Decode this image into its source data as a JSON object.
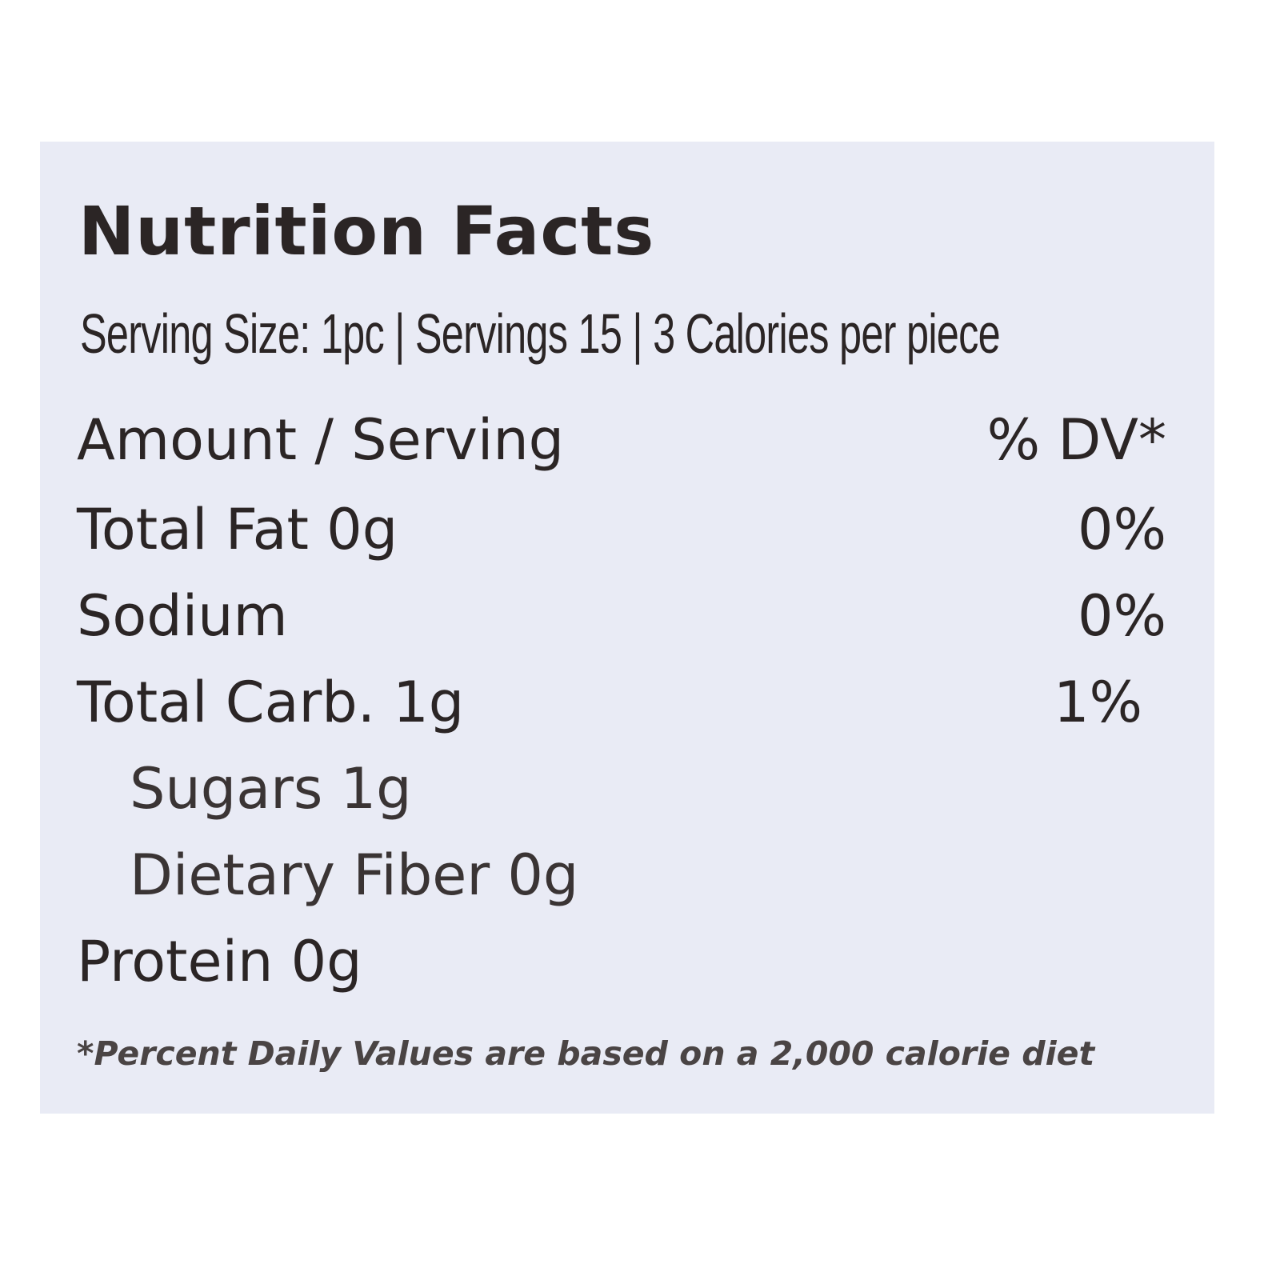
{
  "label": {
    "title": "Nutrition Facts",
    "serving_line": "Serving Size: 1pc | Servings 15 | 3 Calories per piece",
    "header": {
      "left": "Amount / Serving",
      "right": "% DV*"
    },
    "rows": [
      {
        "name": "Total Fat 0g",
        "dv": "0%"
      },
      {
        "name": "Sodium",
        "dv": "0%"
      },
      {
        "name": "Total Carb. 1g",
        "dv": "1%"
      },
      {
        "name": "Sugars 1g",
        "dv": ""
      },
      {
        "name": "Dietary Fiber 0g",
        "dv": ""
      },
      {
        "name": "Protein 0g",
        "dv": ""
      }
    ],
    "footnote": "*Percent Daily Values are based on a 2,000 calorie diet"
  },
  "colors": {
    "background": "#e9ebf5",
    "text": "#2b2525"
  }
}
